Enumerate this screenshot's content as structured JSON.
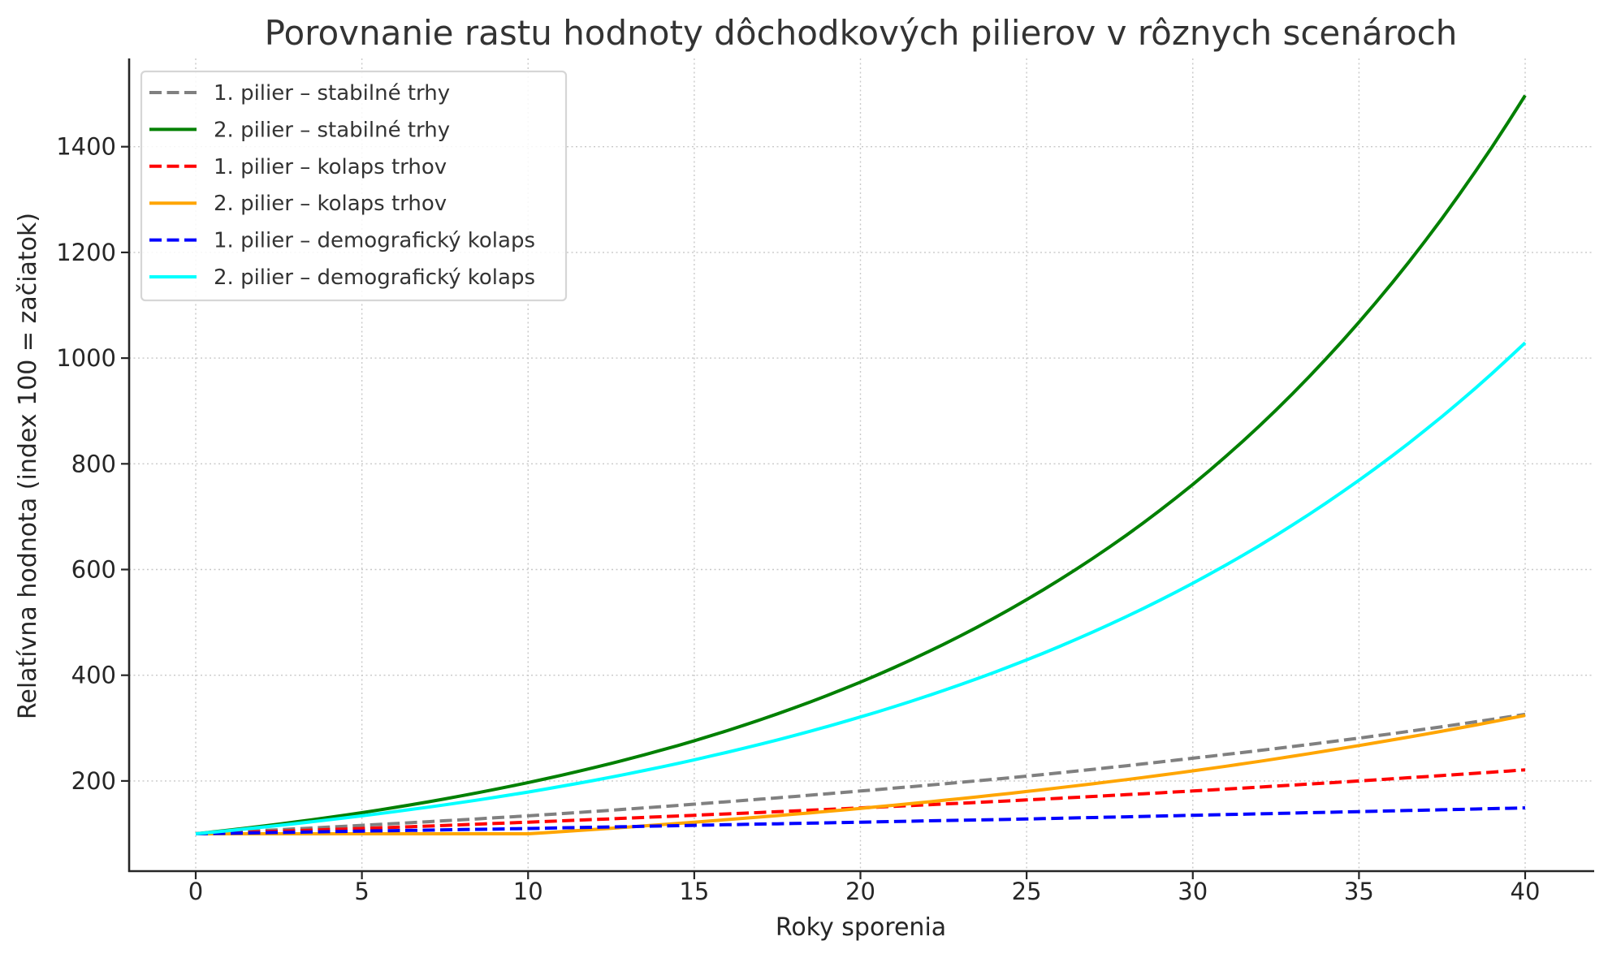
{
  "chart_data": {
    "type": "line",
    "title": "Porovnanie rastu hodnoty dôchodkových pilierov v rôznych scenároch",
    "xlabel": "Roky sporenia",
    "ylabel": "Relatívna hodnota (index 100 = začiatok)",
    "xlim": [
      -2,
      42
    ],
    "ylim": [
      35,
      1570
    ],
    "grid": true,
    "legend_position": "upper left",
    "x_ticks": [
      0,
      5,
      10,
      15,
      20,
      25,
      30,
      35,
      40
    ],
    "y_ticks": [
      200,
      400,
      600,
      800,
      1000,
      1200,
      1400
    ],
    "x": [
      0,
      5,
      10,
      15,
      20,
      25,
      30,
      35,
      40
    ],
    "series": [
      {
        "name": "1. pilier – stabilné trhy",
        "color": "#808080",
        "dashed": true,
        "values": [
          100,
          116,
          134,
          156,
          181,
          209,
          243,
          281,
          326
        ]
      },
      {
        "name": "2. pilier – stabilné trhy",
        "color": "#008000",
        "dashed": false,
        "values": [
          100,
          140,
          197,
          276,
          387,
          543,
          761,
          1068,
          1497
        ]
      },
      {
        "name": "1. pilier – kolaps trhov",
        "color": "#ff0000",
        "dashed": true,
        "values": [
          100,
          110,
          122,
          135,
          149,
          164,
          181,
          200,
          221
        ]
      },
      {
        "name": "2. pilier – kolaps trhov",
        "color": "#ffa500",
        "dashed": false,
        "values": [
          100,
          100,
          100,
          122,
          148,
          180,
          219,
          267,
          324
        ]
      },
      {
        "name": "1. pilier – demografický kolaps",
        "color": "#0000ff",
        "dashed": true,
        "values": [
          100,
          105,
          110,
          116,
          122,
          128,
          135,
          142,
          149
        ]
      },
      {
        "name": "2. pilier – demografický kolaps",
        "color": "#00ffff",
        "dashed": false,
        "values": [
          100,
          134,
          179,
          240,
          321,
          429,
          574,
          769,
          1029
        ]
      }
    ]
  }
}
